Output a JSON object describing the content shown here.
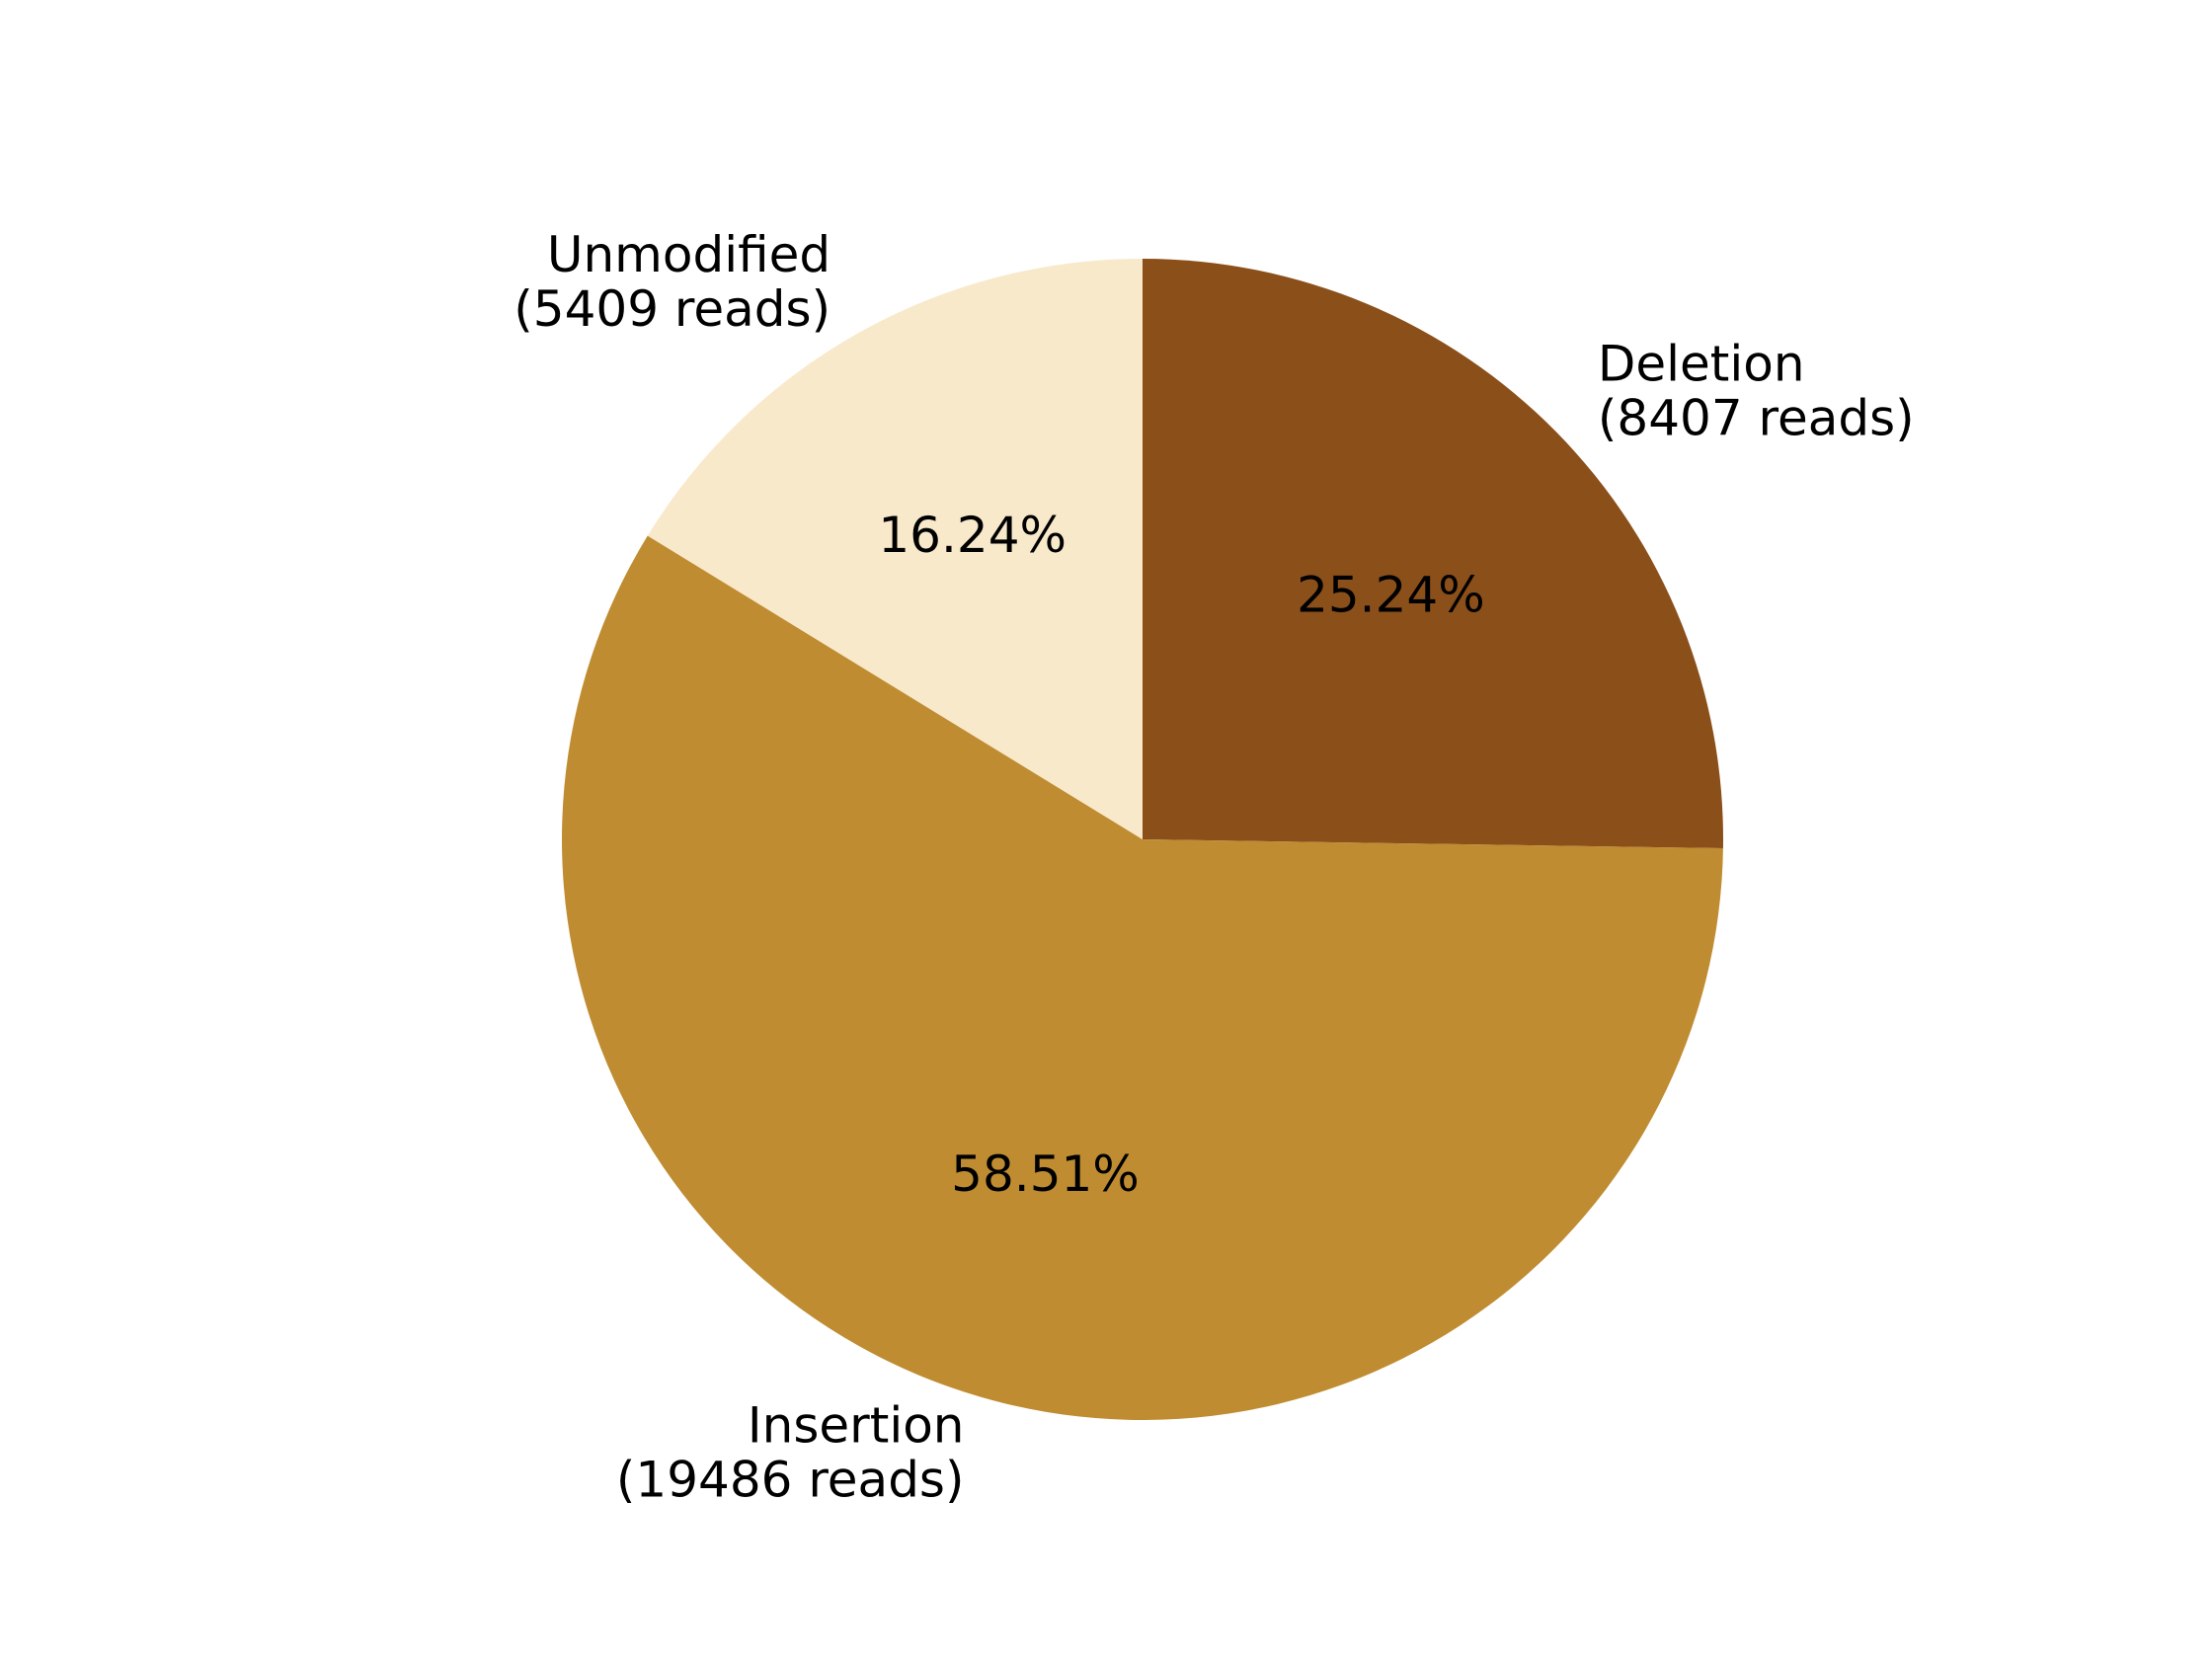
{
  "chart_data": {
    "type": "pie",
    "start_angle_deg": 90,
    "direction": "clockwise",
    "slices": [
      {
        "label": "Deletion",
        "reads_text": "(8407 reads)",
        "value": 8407,
        "percent_text": "25.24%",
        "color": "#8B4F1A"
      },
      {
        "label": "Insertion",
        "reads_text": "(19486 reads)",
        "value": 19486,
        "percent_text": "58.51%",
        "color": "#BF8C31"
      },
      {
        "label": "Unmodified",
        "reads_text": "(5409 reads)",
        "value": 5409,
        "percent_text": "16.24%",
        "color": "#F8E9CA"
      }
    ]
  }
}
